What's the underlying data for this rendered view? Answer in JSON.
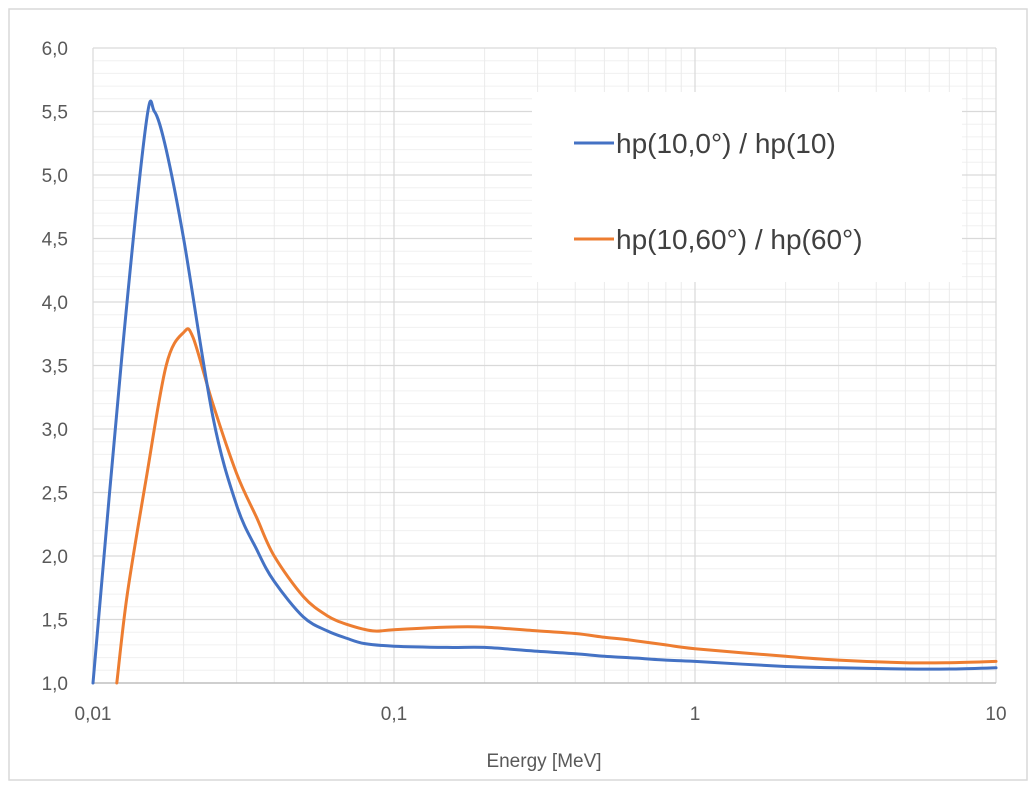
{
  "chart_data": {
    "type": "line",
    "title": "",
    "xlabel": "Energy [MeV]",
    "ylabel": "",
    "xscale": "log",
    "xlim": [
      0.01,
      10
    ],
    "ylim": [
      1.0,
      6.0
    ],
    "x_ticks": [
      "0,01",
      "0,1",
      "1",
      "10"
    ],
    "y_ticks": [
      "1,0",
      "1,5",
      "2,0",
      "2,5",
      "3,0",
      "3,5",
      "4,0",
      "4,5",
      "5,0",
      "5,5",
      "6,0"
    ],
    "grid": true,
    "legend_position": "top-right",
    "series": [
      {
        "name": "hp(10,0°) / hp(10)",
        "color": "#4472C4",
        "x": [
          0.01,
          0.0125,
          0.015,
          0.016,
          0.0175,
          0.02,
          0.025,
          0.03,
          0.035,
          0.04,
          0.05,
          0.06,
          0.07,
          0.08,
          0.1,
          0.15,
          0.2,
          0.3,
          0.4,
          0.5,
          0.6,
          0.8,
          1,
          2,
          3,
          5,
          7,
          10
        ],
        "y": [
          1.0,
          3.6,
          5.4,
          5.5,
          5.2,
          4.5,
          3.1,
          2.4,
          2.05,
          1.8,
          1.52,
          1.41,
          1.35,
          1.31,
          1.29,
          1.28,
          1.28,
          1.25,
          1.23,
          1.21,
          1.2,
          1.18,
          1.17,
          1.13,
          1.12,
          1.11,
          1.11,
          1.12
        ]
      },
      {
        "name": "hp(10,60°) / hp(60°)",
        "color": "#ED7D31",
        "x": [
          0.012,
          0.013,
          0.015,
          0.0175,
          0.02,
          0.0215,
          0.025,
          0.03,
          0.035,
          0.04,
          0.05,
          0.06,
          0.07,
          0.085,
          0.1,
          0.15,
          0.2,
          0.3,
          0.4,
          0.5,
          0.6,
          0.8,
          1,
          2,
          3,
          5,
          7,
          10
        ],
        "y": [
          1.0,
          1.7,
          2.6,
          3.5,
          3.76,
          3.72,
          3.2,
          2.65,
          2.3,
          2.0,
          1.68,
          1.53,
          1.46,
          1.41,
          1.42,
          1.44,
          1.44,
          1.41,
          1.39,
          1.36,
          1.34,
          1.3,
          1.27,
          1.21,
          1.18,
          1.16,
          1.16,
          1.17
        ]
      }
    ]
  }
}
